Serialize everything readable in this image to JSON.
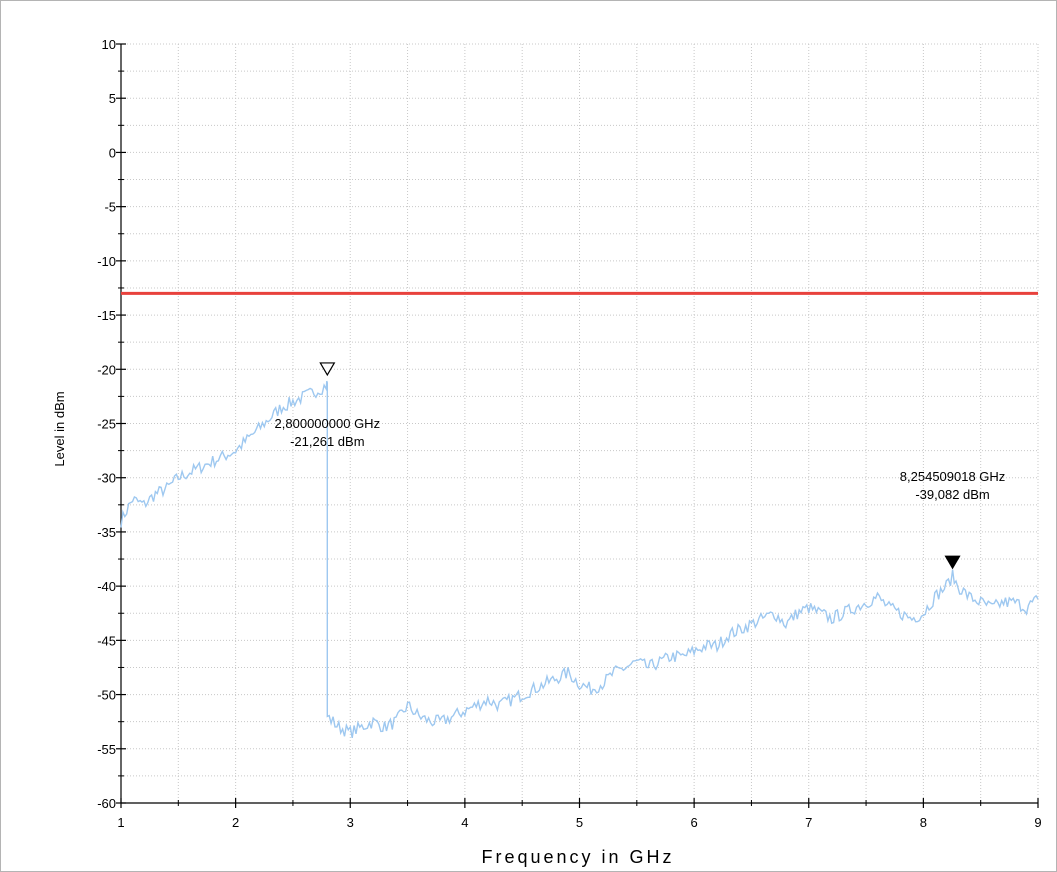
{
  "chart_data": {
    "type": "line",
    "xlabel": "Frequency in GHz",
    "ylabel": "Level in dBm",
    "xlim": [
      1,
      9
    ],
    "ylim": [
      -60,
      10
    ],
    "x_ticks": [
      "1",
      "2",
      "3",
      "4",
      "5",
      "6",
      "7",
      "8",
      "9"
    ],
    "y_ticks": [
      "10",
      "5",
      "0",
      "-5",
      "-10",
      "-15",
      "-20",
      "-25",
      "-30",
      "-35",
      "-40",
      "-45",
      "-50",
      "-55",
      "-60"
    ],
    "grid": true,
    "limit_line": {
      "y": -13,
      "color": "#e8413c"
    },
    "series": [
      {
        "color": "#9ec8f0",
        "x": [
          1.0,
          1.1,
          1.2,
          1.3,
          1.4,
          1.5,
          1.6,
          1.7,
          1.8,
          1.9,
          2.0,
          2.1,
          2.2,
          2.3,
          2.4,
          2.5,
          2.6,
          2.7,
          2.79,
          2.8,
          2.8,
          2.9,
          3.0,
          3.1,
          3.2,
          3.3,
          3.4,
          3.5,
          3.6,
          3.7,
          3.8,
          3.9,
          4.0,
          4.1,
          4.2,
          4.3,
          4.4,
          4.5,
          4.6,
          4.7,
          4.8,
          4.9,
          5.0,
          5.1,
          5.2,
          5.3,
          5.4,
          5.5,
          5.6,
          5.7,
          5.8,
          5.9,
          6.0,
          6.1,
          6.2,
          6.3,
          6.4,
          6.5,
          6.6,
          6.7,
          6.8,
          6.9,
          7.0,
          7.1,
          7.2,
          7.3,
          7.4,
          7.5,
          7.6,
          7.7,
          7.8,
          7.9,
          8.0,
          8.1,
          8.2,
          8.255,
          8.3,
          8.4,
          8.5,
          8.6,
          8.7,
          8.8,
          8.9,
          9.0
        ],
        "y": [
          -34,
          -32,
          -32.5,
          -31.5,
          -31,
          -30,
          -29.5,
          -29,
          -28.5,
          -28,
          -27.5,
          -26.5,
          -25.5,
          -24.5,
          -23.5,
          -23,
          -22.5,
          -22,
          -21.5,
          -21.26,
          -52,
          -53,
          -53.5,
          -53,
          -52.5,
          -53,
          -52.5,
          -51,
          -52,
          -52.5,
          -52.5,
          -52,
          -51.5,
          -51,
          -50.5,
          -51,
          -50.5,
          -50,
          -49.5,
          -49,
          -48.5,
          -48,
          -49,
          -49.5,
          -49,
          -48,
          -47.5,
          -47,
          -47.5,
          -47,
          -46.5,
          -46.5,
          -46,
          -45.5,
          -45.5,
          -44.5,
          -44,
          -43.5,
          -43,
          -42.5,
          -43.5,
          -42.5,
          -42,
          -42.5,
          -43,
          -42.5,
          -42,
          -41.5,
          -41,
          -42,
          -42.5,
          -43,
          -42.5,
          -41,
          -40,
          -39.08,
          -40,
          -41,
          -41.5,
          -42,
          -41.5,
          -41.5,
          -42,
          -41.2
        ]
      }
    ],
    "markers": [
      {
        "x": 2.8,
        "y": -21.261,
        "style": "open-triangle",
        "freq_text": "2,800000000 GHz",
        "level_text": "-21,261 dBm"
      },
      {
        "x": 8.2545,
        "y": -39.082,
        "style": "filled-triangle",
        "freq_text": "8,254509018 GHz",
        "level_text": "-39,082 dBm"
      }
    ]
  }
}
